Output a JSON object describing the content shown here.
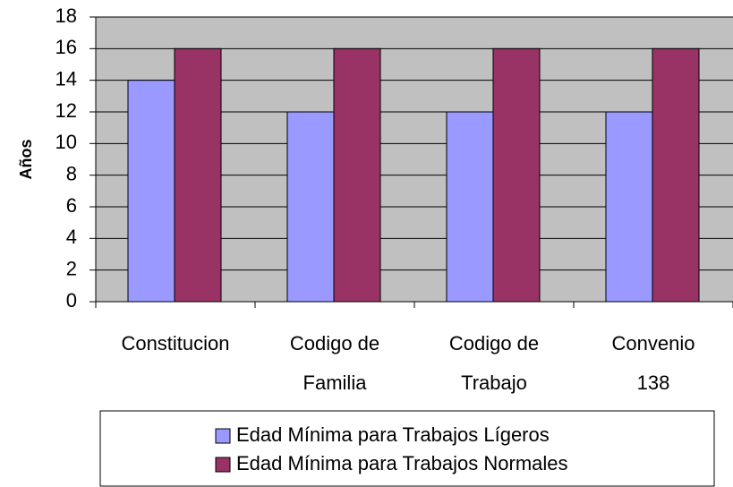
{
  "chart_data": {
    "type": "bar",
    "categories": [
      "Constitucion",
      "Codigo de\nFamilia",
      "Codigo de\nTrabajo",
      "Convenio\n138"
    ],
    "series": [
      {
        "name": "Edad Mínima para Trabajos Lígeros",
        "color": "#9999ff",
        "values": [
          14,
          12,
          12,
          12
        ]
      },
      {
        "name": "Edad Mínima para Trabajos Normales",
        "color": "#993366",
        "values": [
          16,
          16,
          16,
          16
        ]
      }
    ],
    "y_label": "Años",
    "ylim": [
      0,
      18
    ],
    "yticks": [
      0,
      2,
      4,
      6,
      8,
      10,
      12,
      14,
      16,
      18
    ],
    "grid": true,
    "legend": "bottom",
    "plot_background": "#c0c0c0"
  }
}
